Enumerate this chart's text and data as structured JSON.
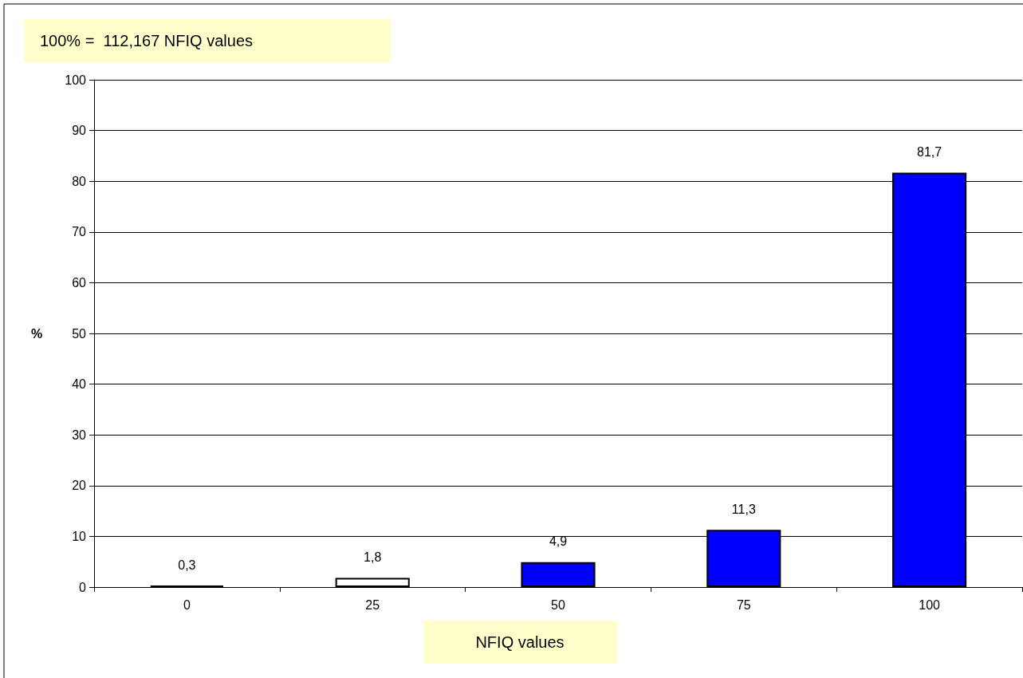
{
  "chart_data": {
    "type": "bar",
    "title": "100% =  112,167 NFIQ values",
    "xlabel": "NFIQ values",
    "ylabel": "%",
    "categories": [
      "0",
      "25",
      "50",
      "75",
      "100"
    ],
    "values": [
      0.3,
      1.8,
      4.9,
      11.3,
      81.7
    ],
    "colors": [
      "#000000",
      "#ffffff",
      "#0000ff",
      "#0000ff",
      "#0000ff"
    ],
    "value_labels": [
      "0,3",
      "1,8",
      "4,9",
      "11,3",
      "81,7"
    ],
    "ylim": [
      0,
      100
    ],
    "yticks": [
      0,
      10,
      20,
      30,
      40,
      50,
      60,
      70,
      80,
      90,
      100
    ],
    "grid": "y"
  }
}
